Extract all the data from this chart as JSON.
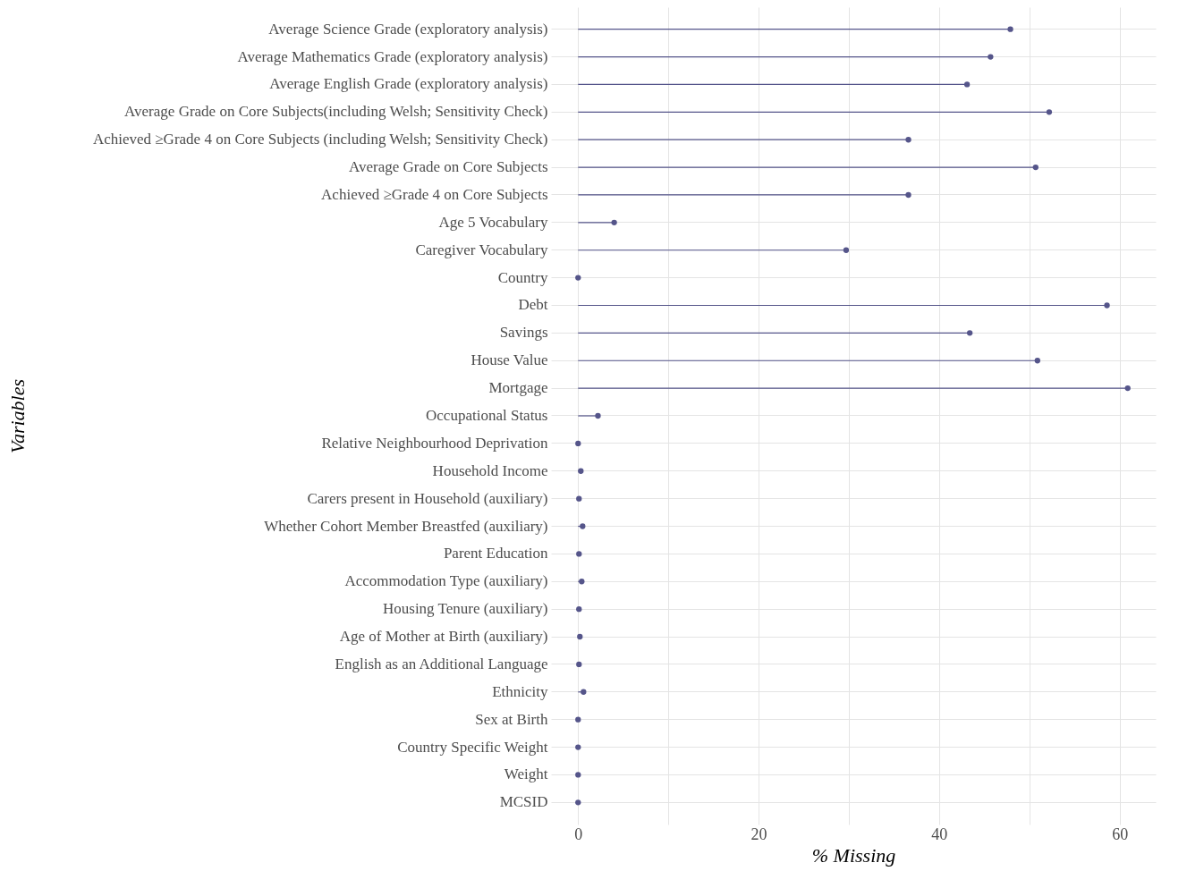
{
  "chart_data": {
    "type": "lollipop",
    "orientation": "horizontal",
    "xlabel": "% Missing",
    "ylabel": "Variables",
    "categories": [
      "Average Science Grade (exploratory analysis)",
      "Average Mathematics Grade (exploratory analysis)",
      "Average English Grade (exploratory analysis)",
      "Average Grade on Core Subjects(including Welsh; Sensitivity Check)",
      "Achieved ≥Grade 4 on Core Subjects (including Welsh; Sensitivity Check)",
      "Average Grade on Core Subjects",
      "Achieved ≥Grade 4 on Core Subjects",
      "Age 5 Vocabulary",
      "Caregiver Vocabulary",
      "Country",
      "Debt",
      "Savings",
      "House Value",
      "Mortgage",
      "Occupational Status",
      "Relative Neighbourhood Deprivation",
      "Household Income",
      "Carers present in Household (auxiliary)",
      "Whether Cohort Member Breastfed (auxiliary)",
      "Parent Education",
      "Accommodation Type (auxiliary)",
      "Housing Tenure (auxiliary)",
      "Age of Mother at Birth (auxiliary)",
      "English as an Additional Language",
      "Ethnicity",
      "Sex at Birth",
      "Country Specific Weight",
      "Weight",
      "MCSID"
    ],
    "series": [
      {
        "color": "#55558a",
        "values": [
          47.9,
          45.7,
          43.1,
          52.2,
          36.6,
          50.7,
          36.6,
          4.0,
          29.7,
          0,
          58.6,
          43.4,
          50.9,
          60.9,
          2.2,
          0,
          0.3,
          0.1,
          0.5,
          0.1,
          0.4,
          0.1,
          0.2,
          0.1,
          0.6,
          0,
          0,
          0,
          0
        ]
      }
    ],
    "xlim": [
      -3,
      64
    ],
    "xticks": [
      0,
      {
        "value": 10,
        "label": null
      },
      20,
      {
        "value": 30,
        "label": null
      },
      40,
      {
        "value": 50,
        "label": null
      },
      60
    ],
    "grid": true,
    "marker": "circle"
  }
}
